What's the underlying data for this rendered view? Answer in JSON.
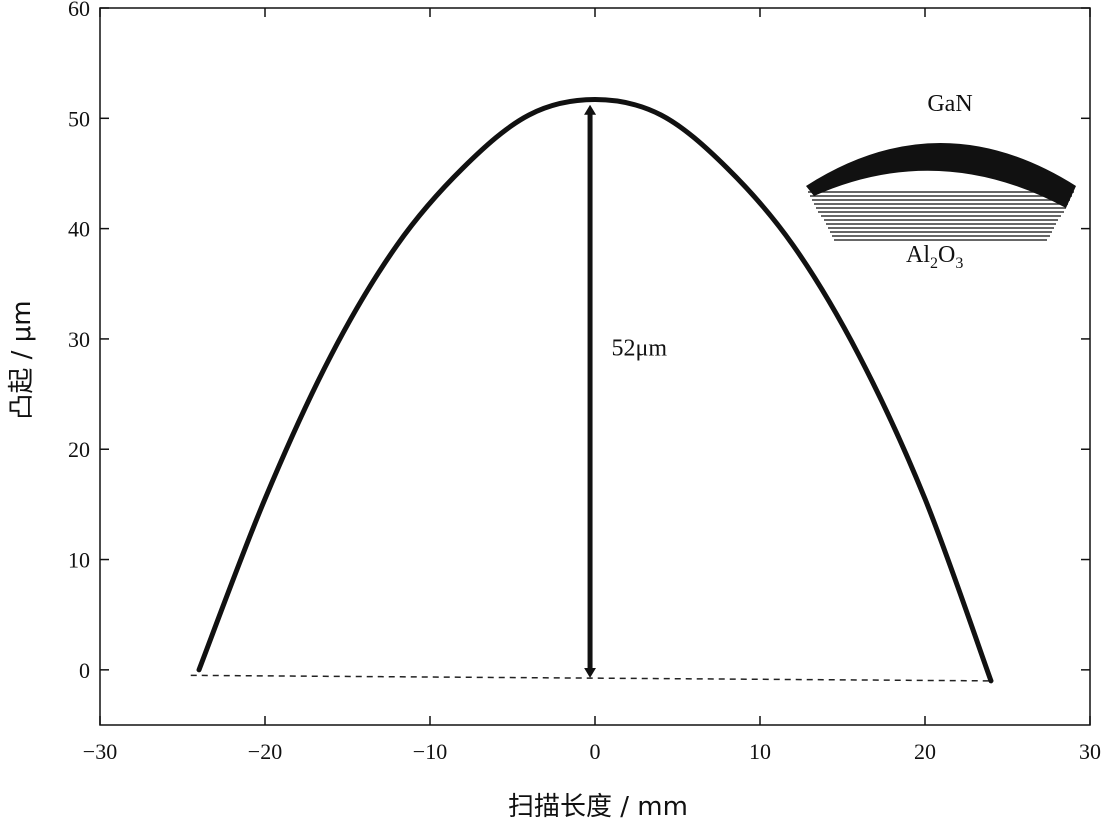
{
  "chart_data": {
    "type": "line",
    "title": "",
    "xlabel": "扫描长度 / mm",
    "ylabel": "凸起 / μm",
    "xlim": [
      -30,
      30
    ],
    "ylim": [
      -5,
      60
    ],
    "x_ticks": [
      -30,
      -20,
      -10,
      0,
      10,
      20,
      30
    ],
    "x_tick_labels": [
      "−30",
      "−20",
      "−10",
      "0",
      "10",
      "20",
      "30"
    ],
    "y_ticks": [
      0,
      10,
      20,
      30,
      40,
      50,
      60
    ],
    "y_tick_labels": [
      "0",
      "10",
      "20",
      "30",
      "40",
      "50",
      "60"
    ],
    "grid": false,
    "series": [
      {
        "style": "solid-thick",
        "x": [
          -24,
          -20,
          -16,
          -12,
          -8,
          -4,
          0,
          4,
          8,
          12,
          16,
          20,
          24
        ],
        "y": [
          0,
          15.5,
          28.5,
          38.5,
          45.5,
          50.3,
          51.7,
          50.3,
          45.5,
          38.5,
          28.5,
          15.5,
          -1
        ]
      },
      {
        "style": "dashed-baseline",
        "x": [
          -24.5,
          24
        ],
        "y": [
          -0.5,
          -1
        ]
      }
    ],
    "annotations": [
      {
        "type": "double-arrow",
        "x": -0.3,
        "y_from": -1,
        "y_to": 51.5
      },
      {
        "type": "text",
        "text": "52μm",
        "x": 1,
        "y": 28.5
      }
    ],
    "inset": {
      "top_label": "GaN",
      "bottom_label": "Al2O3"
    }
  }
}
